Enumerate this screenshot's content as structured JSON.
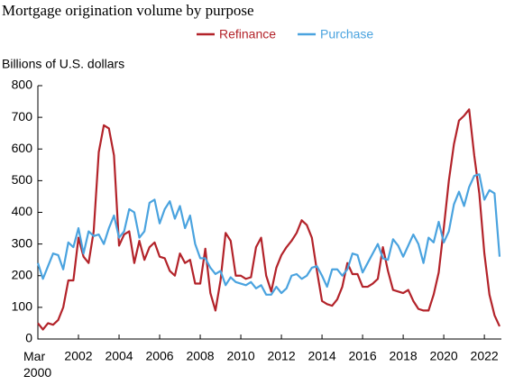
{
  "chart_data": {
    "type": "line",
    "title": "Mortgage origination volume by purpose",
    "y_label": "Billions of U.S. dollars",
    "categories": [
      "Mar 2000",
      null,
      null,
      null,
      null,
      null,
      null,
      null,
      "2002",
      null,
      null,
      null,
      null,
      null,
      null,
      null,
      "2004",
      null,
      null,
      null,
      null,
      null,
      null,
      null,
      "2006",
      null,
      null,
      null,
      null,
      null,
      null,
      null,
      "2008",
      null,
      null,
      null,
      null,
      null,
      null,
      null,
      "2010",
      null,
      null,
      null,
      null,
      null,
      null,
      null,
      "2012",
      null,
      null,
      null,
      null,
      null,
      null,
      null,
      "2014",
      null,
      null,
      null,
      null,
      null,
      null,
      null,
      "2016",
      null,
      null,
      null,
      null,
      null,
      null,
      null,
      "2018",
      null,
      null,
      null,
      null,
      null,
      null,
      null,
      "2020",
      null,
      null,
      null,
      null,
      null,
      null,
      null,
      "2022",
      null,
      null,
      null
    ],
    "series": [
      {
        "name": "Refinance",
        "color": "#b3232a",
        "values": [
          50,
          30,
          50,
          45,
          60,
          100,
          185,
          185,
          320,
          260,
          240,
          340,
          590,
          675,
          665,
          580,
          295,
          330,
          340,
          240,
          310,
          250,
          290,
          305,
          260,
          255,
          215,
          200,
          270,
          240,
          250,
          175,
          175,
          285,
          145,
          90,
          185,
          335,
          310,
          200,
          200,
          190,
          195,
          290,
          320,
          200,
          150,
          225,
          265,
          290,
          310,
          335,
          375,
          360,
          320,
          215,
          120,
          110,
          105,
          125,
          165,
          240,
          205,
          205,
          165,
          165,
          175,
          190,
          290,
          215,
          155,
          150,
          145,
          155,
          120,
          95,
          90,
          90,
          140,
          210,
          350,
          500,
          615,
          690,
          705,
          725,
          580,
          460,
          270,
          140,
          75,
          40
        ]
      },
      {
        "name": "Purchase",
        "color": "#4aa3df",
        "values": [
          240,
          190,
          230,
          270,
          265,
          220,
          305,
          290,
          350,
          270,
          340,
          325,
          330,
          300,
          350,
          390,
          320,
          340,
          410,
          400,
          320,
          340,
          430,
          440,
          365,
          410,
          435,
          380,
          420,
          350,
          390,
          300,
          255,
          255,
          225,
          205,
          215,
          170,
          195,
          180,
          175,
          170,
          180,
          160,
          170,
          140,
          140,
          165,
          145,
          160,
          200,
          205,
          190,
          200,
          225,
          230,
          200,
          165,
          220,
          220,
          200,
          220,
          270,
          265,
          210,
          240,
          270,
          300,
          255,
          250,
          315,
          295,
          260,
          295,
          330,
          300,
          240,
          320,
          305,
          370,
          305,
          340,
          425,
          465,
          420,
          480,
          515,
          520,
          440,
          470,
          460,
          260
        ]
      }
    ],
    "ylim": [
      0,
      800
    ],
    "yticks": [
      0,
      100,
      200,
      300,
      400,
      500,
      600,
      700,
      800
    ],
    "grid": false,
    "legend": "top"
  }
}
